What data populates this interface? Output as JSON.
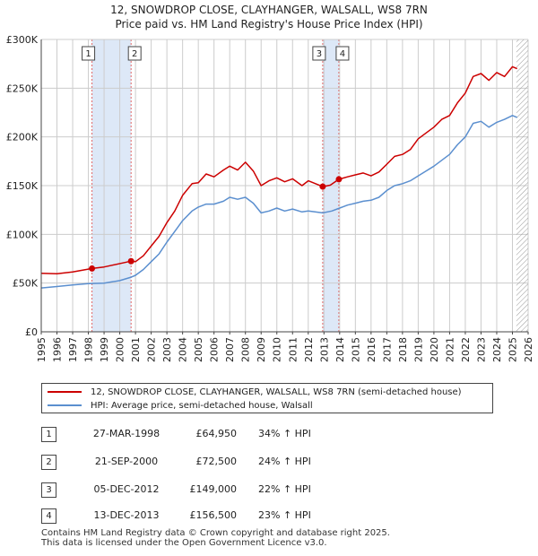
{
  "title_line1": "12, SNOWDROP CLOSE, CLAYHANGER, WALSALL, WS8 7RN",
  "title_line2": "Price paid vs. HM Land Registry's House Price Index (HPI)",
  "colors": {
    "red": "#cc0000",
    "blue": "#5b8fcf",
    "band": "#dde8f7",
    "grid": "#cccccc"
  },
  "chart_data": {
    "type": "line",
    "x_range": [
      1995,
      2026
    ],
    "y_range": [
      0,
      300000
    ],
    "y_ticks": [
      {
        "value": 0,
        "label": "£0"
      },
      {
        "value": 50000,
        "label": "£50K"
      },
      {
        "value": 100000,
        "label": "£100K"
      },
      {
        "value": 150000,
        "label": "£150K"
      },
      {
        "value": 200000,
        "label": "£200K"
      },
      {
        "value": 250000,
        "label": "£250K"
      },
      {
        "value": 300000,
        "label": "£300K"
      }
    ],
    "x_ticks": [
      "1995",
      "1996",
      "1997",
      "1998",
      "1999",
      "2000",
      "2001",
      "2002",
      "2003",
      "2004",
      "2005",
      "2006",
      "2007",
      "2008",
      "2009",
      "2010",
      "2011",
      "2012",
      "2013",
      "2014",
      "2015",
      "2016",
      "2017",
      "2018",
      "2019",
      "2020",
      "2021",
      "2022",
      "2023",
      "2024",
      "2025",
      "2026"
    ],
    "shaded_periods": [
      [
        1998.23,
        2000.72
      ],
      [
        2012.92,
        2013.95
      ]
    ],
    "future_from": 2025.25,
    "series": [
      {
        "name": "12, SNOWDROP CLOSE, CLAYHANGER, WALSALL, WS8 7RN (semi-detached house)",
        "color": "#cc0000",
        "points": [
          [
            1995,
            60000
          ],
          [
            1996,
            59500
          ],
          [
            1997,
            61500
          ],
          [
            1998.23,
            64950
          ],
          [
            1999,
            66500
          ],
          [
            2000.72,
            72500
          ],
          [
            2001,
            72000
          ],
          [
            2001.5,
            78000
          ],
          [
            2002,
            88000
          ],
          [
            2002.5,
            98000
          ],
          [
            2003,
            112000
          ],
          [
            2003.5,
            124000
          ],
          [
            2004,
            140000
          ],
          [
            2004.6,
            152000
          ],
          [
            2005,
            153000
          ],
          [
            2005.5,
            162000
          ],
          [
            2006,
            159000
          ],
          [
            2006.6,
            166000
          ],
          [
            2007,
            170000
          ],
          [
            2007.5,
            166000
          ],
          [
            2008,
            174000
          ],
          [
            2008.5,
            165000
          ],
          [
            2009,
            150000
          ],
          [
            2009.5,
            155000
          ],
          [
            2010,
            158000
          ],
          [
            2010.5,
            154000
          ],
          [
            2011,
            157000
          ],
          [
            2011.6,
            150000
          ],
          [
            2012,
            155000
          ],
          [
            2012.92,
            149000
          ],
          [
            2013.4,
            150500
          ],
          [
            2013.95,
            156500
          ],
          [
            2014.5,
            159000
          ],
          [
            2015,
            161000
          ],
          [
            2015.5,
            163000
          ],
          [
            2016,
            160000
          ],
          [
            2016.5,
            164000
          ],
          [
            2017,
            172000
          ],
          [
            2017.5,
            180000
          ],
          [
            2018,
            182000
          ],
          [
            2018.5,
            187000
          ],
          [
            2019,
            198000
          ],
          [
            2019.5,
            204000
          ],
          [
            2020,
            210000
          ],
          [
            2020.5,
            218000
          ],
          [
            2021,
            222000
          ],
          [
            2021.5,
            235000
          ],
          [
            2022,
            245000
          ],
          [
            2022.5,
            262000
          ],
          [
            2023,
            265000
          ],
          [
            2023.5,
            258000
          ],
          [
            2024,
            266000
          ],
          [
            2024.5,
            262000
          ],
          [
            2025,
            272000
          ],
          [
            2025.3,
            270000
          ]
        ]
      },
      {
        "name": "HPI: Average price, semi-detached house, Walsall",
        "color": "#5b8fcf",
        "points": [
          [
            1995,
            45000
          ],
          [
            1996,
            46500
          ],
          [
            1997,
            48000
          ],
          [
            1998,
            49500
          ],
          [
            1999,
            50000
          ],
          [
            2000,
            52500
          ],
          [
            2000.72,
            56000
          ],
          [
            2001,
            58000
          ],
          [
            2001.5,
            64000
          ],
          [
            2002,
            72000
          ],
          [
            2002.5,
            80000
          ],
          [
            2003,
            92000
          ],
          [
            2003.5,
            103000
          ],
          [
            2004,
            114000
          ],
          [
            2004.6,
            124000
          ],
          [
            2005,
            128000
          ],
          [
            2005.5,
            131000
          ],
          [
            2006,
            131000
          ],
          [
            2006.6,
            134000
          ],
          [
            2007,
            138000
          ],
          [
            2007.5,
            136000
          ],
          [
            2008,
            138000
          ],
          [
            2008.5,
            132000
          ],
          [
            2009,
            122000
          ],
          [
            2009.5,
            124000
          ],
          [
            2010,
            127000
          ],
          [
            2010.5,
            124000
          ],
          [
            2011,
            126000
          ],
          [
            2011.6,
            123000
          ],
          [
            2012,
            124000
          ],
          [
            2012.92,
            122000
          ],
          [
            2013.5,
            124000
          ],
          [
            2014,
            127000
          ],
          [
            2014.5,
            130000
          ],
          [
            2015,
            132000
          ],
          [
            2015.5,
            134000
          ],
          [
            2016,
            135000
          ],
          [
            2016.5,
            138000
          ],
          [
            2017,
            145000
          ],
          [
            2017.5,
            150000
          ],
          [
            2018,
            152000
          ],
          [
            2018.5,
            155000
          ],
          [
            2019,
            160000
          ],
          [
            2019.5,
            165000
          ],
          [
            2020,
            170000
          ],
          [
            2020.5,
            176000
          ],
          [
            2021,
            182000
          ],
          [
            2021.5,
            192000
          ],
          [
            2022,
            200000
          ],
          [
            2022.5,
            214000
          ],
          [
            2023,
            216000
          ],
          [
            2023.5,
            210000
          ],
          [
            2024,
            215000
          ],
          [
            2024.5,
            218000
          ],
          [
            2025,
            222000
          ],
          [
            2025.3,
            220000
          ]
        ]
      }
    ],
    "sales": [
      {
        "n": "1",
        "x": 1998.23,
        "y": 64950
      },
      {
        "n": "2",
        "x": 2000.72,
        "y": 72500
      },
      {
        "n": "3",
        "x": 2012.92,
        "y": 149000
      },
      {
        "n": "4",
        "x": 2013.95,
        "y": 156500
      }
    ]
  },
  "legend": {
    "red_label": "12, SNOWDROP CLOSE, CLAYHANGER, WALSALL, WS8 7RN (semi-detached house)",
    "blue_label": "HPI: Average price, semi-detached house, Walsall"
  },
  "transactions": [
    {
      "n": "1",
      "date": "27-MAR-1998",
      "price": "£64,950",
      "hpi": "34% ↑ HPI"
    },
    {
      "n": "2",
      "date": "21-SEP-2000",
      "price": "£72,500",
      "hpi": "24% ↑ HPI"
    },
    {
      "n": "3",
      "date": "05-DEC-2012",
      "price": "£149,000",
      "hpi": "22% ↑ HPI"
    },
    {
      "n": "4",
      "date": "13-DEC-2013",
      "price": "£156,500",
      "hpi": "23% ↑ HPI"
    }
  ],
  "footer": {
    "line1": "Contains HM Land Registry data © Crown copyright and database right 2025.",
    "line2": "This data is licensed under the Open Government Licence v3.0."
  }
}
